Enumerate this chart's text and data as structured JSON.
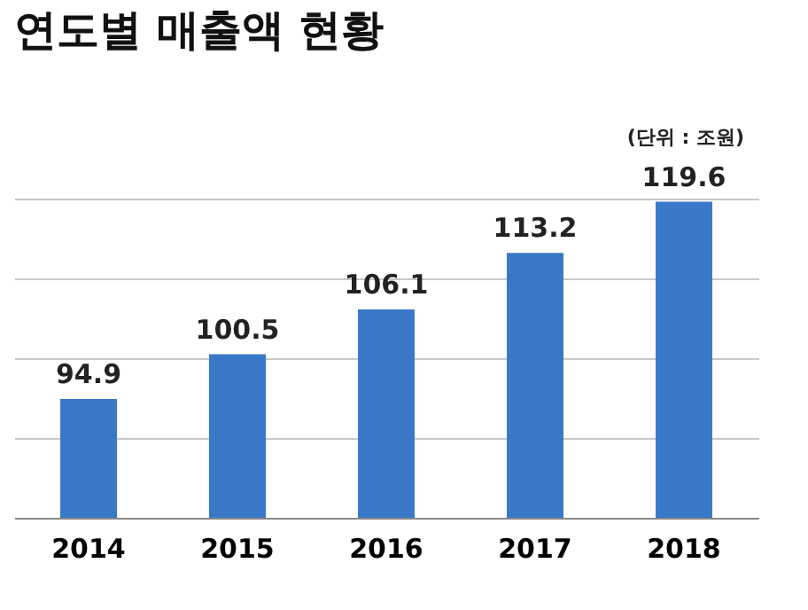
{
  "chart_data": {
    "type": "bar",
    "title": "연도별 매출액 현황",
    "annotations": [
      "(단위 : 조원)"
    ],
    "categories": [
      "2014",
      "2015",
      "2016",
      "2017",
      "2018"
    ],
    "values": [
      94.9,
      100.5,
      106.1,
      113.2,
      119.6
    ],
    "color": "#3a78c8",
    "data_labels": true,
    "ylim": [
      80,
      120
    ],
    "yticks": [
      {
        "value": 80,
        "label": null
      },
      {
        "value": 90,
        "label": null
      },
      {
        "value": 100,
        "label": null
      },
      {
        "value": 110,
        "label": null
      },
      {
        "value": 120,
        "label": null
      }
    ],
    "tick_labels": "x",
    "grid": "y"
  }
}
